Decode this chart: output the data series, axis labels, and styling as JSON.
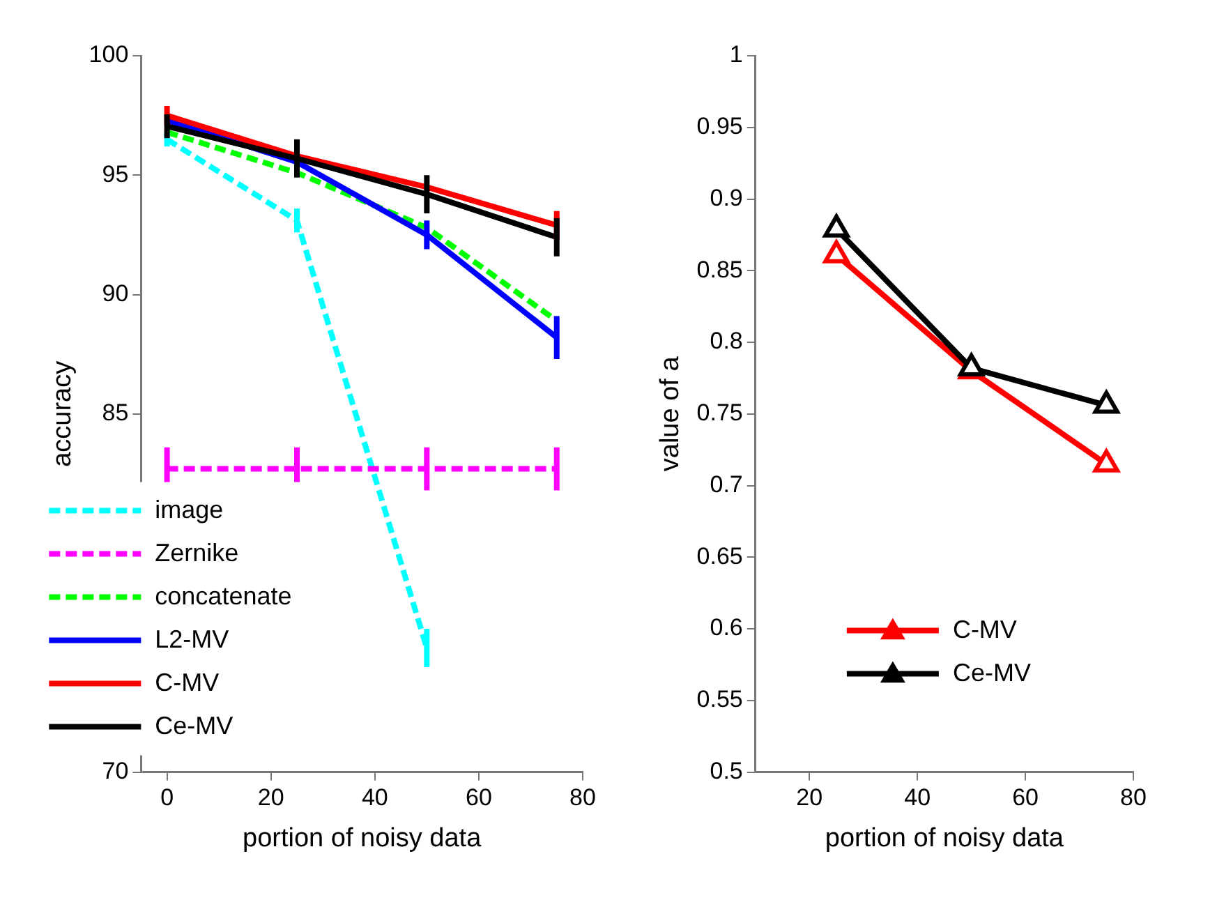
{
  "chart_data": [
    {
      "type": "line",
      "xlabel": "portion of noisy data",
      "ylabel": "accuracy",
      "x": [
        0,
        25,
        50,
        75
      ],
      "xlim": [
        -5,
        80
      ],
      "xticks": [
        0,
        20,
        40,
        60,
        80
      ],
      "ylim": [
        70,
        100
      ],
      "yticks": [
        70,
        85,
        90,
        95,
        100
      ],
      "grid": false,
      "legend": "bottom left",
      "marker": "none",
      "series": [
        {
          "name": "image",
          "color": "#00ffff",
          "line_style": "dashed",
          "values": [
            96.5,
            93.1,
            75.2,
            null
          ],
          "errors": [
            0.3,
            0.5,
            0.8,
            null
          ]
        },
        {
          "name": "Zernike",
          "color": "#ff00ff",
          "line_style": "dashed",
          "values": [
            82.7,
            82.7,
            82.7,
            82.7
          ],
          "errors": [
            0.9,
            0.9,
            0.9,
            0.9
          ]
        },
        {
          "name": "concatenate",
          "color": "#00ff00",
          "line_style": "dashed",
          "values": [
            96.8,
            95.1,
            92.8,
            88.9
          ]
        },
        {
          "name": "L2-MV",
          "color": "#0000ff",
          "line_style": "solid",
          "values": [
            97.3,
            95.55,
            92.5,
            88.2
          ],
          "errors": [
            null,
            null,
            0.6,
            0.9
          ]
        },
        {
          "name": "C-MV",
          "color": "#ff0000",
          "line_style": "solid",
          "values": [
            97.5,
            95.8,
            94.5,
            92.9
          ],
          "errors": [
            0.4,
            null,
            null,
            0.6
          ]
        },
        {
          "name": "Ce-MV",
          "color": "#000000",
          "line_style": "solid",
          "values": [
            97.05,
            95.7,
            94.2,
            92.4
          ],
          "errors": [
            0.5,
            0.8,
            0.8,
            0.8
          ]
        }
      ]
    },
    {
      "type": "line",
      "xlabel": "portion of noisy data",
      "ylabel": "value of a",
      "x": [
        25,
        50,
        75
      ],
      "xlim": [
        10,
        80
      ],
      "xticks": [
        20,
        40,
        60,
        80
      ],
      "ylim": [
        0.5,
        1
      ],
      "yticks": [
        0.5,
        0.55,
        0.6,
        0.65,
        0.7,
        0.75,
        0.8,
        0.85,
        0.9,
        0.95,
        1
      ],
      "grid": false,
      "legend": "bottom",
      "marker": "triangle",
      "series": [
        {
          "name": "C-MV",
          "color": "#ff0000",
          "line_style": "solid",
          "values": [
            0.861,
            0.78,
            0.715
          ]
        },
        {
          "name": "Ce-MV",
          "color": "#000000",
          "line_style": "solid",
          "values": [
            0.879,
            0.782,
            0.756
          ]
        }
      ]
    }
  ]
}
